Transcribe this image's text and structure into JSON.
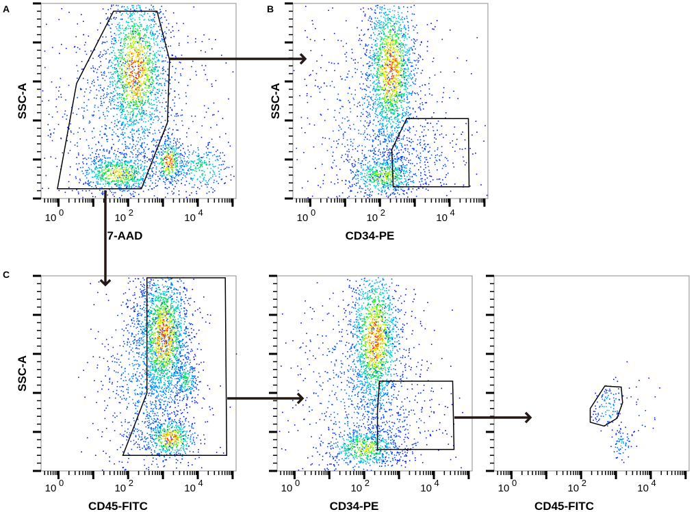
{
  "chart_data": {
    "type": "scatter",
    "subtype": "flow-cytometry density plots with gates",
    "panel_letters": [
      "A",
      "B",
      "C"
    ],
    "x_scale": "log10",
    "x_range_log10": [
      -0.5,
      5.1
    ],
    "y_range_fraction": [
      0,
      1
    ],
    "x_tick_labels": [
      {
        "base": "10",
        "exp": "0",
        "value": 0
      },
      {
        "base": "10",
        "exp": "2",
        "value": 2
      },
      {
        "base": "10",
        "exp": "4",
        "value": 4
      }
    ],
    "plots": [
      {
        "id": "A",
        "xlabel": "7-AAD",
        "ylabel": "SSC-A",
        "populations": [
          {
            "cx": 2.2,
            "cy": 0.66,
            "sx": 0.45,
            "sy": 0.2,
            "n": 1700,
            "peak": 1.0
          },
          {
            "cx": 1.7,
            "cy": 0.13,
            "sx": 0.55,
            "sy": 0.05,
            "n": 700,
            "peak": 0.85
          },
          {
            "cx": 3.15,
            "cy": 0.19,
            "sx": 0.2,
            "sy": 0.06,
            "n": 320,
            "peak": 1.0
          },
          {
            "cx": 4.05,
            "cy": 0.16,
            "sx": 0.4,
            "sy": 0.06,
            "n": 260,
            "peak": 0.55
          },
          {
            "cx": 2.0,
            "cy": 0.4,
            "sx": 1.3,
            "sy": 0.3,
            "n": 900,
            "peak": 0.2
          }
        ],
        "gate": [
          [
            1.58,
            0.96
          ],
          [
            2.83,
            0.96
          ],
          [
            3.19,
            0.71
          ],
          [
            3.13,
            0.39
          ],
          [
            2.38,
            0.05
          ],
          [
            -0.03,
            0.05
          ],
          [
            0.52,
            0.59
          ]
        ]
      },
      {
        "id": "B",
        "xlabel": "CD34-PE",
        "ylabel": "SSC-A",
        "populations": [
          {
            "cx": 2.3,
            "cy": 0.66,
            "sx": 0.35,
            "sy": 0.2,
            "n": 1700,
            "peak": 1.0
          },
          {
            "cx": 2.1,
            "cy": 0.12,
            "sx": 0.5,
            "sy": 0.05,
            "n": 600,
            "peak": 0.75
          },
          {
            "cx": 1.9,
            "cy": 0.4,
            "sx": 1.1,
            "sy": 0.28,
            "n": 800,
            "peak": 0.2
          },
          {
            "cx": 3.3,
            "cy": 0.2,
            "sx": 0.6,
            "sy": 0.1,
            "n": 150,
            "peak": 0.15
          }
        ],
        "gate": [
          [
            2.77,
            0.41
          ],
          [
            4.54,
            0.41
          ],
          [
            4.56,
            0.06
          ],
          [
            2.38,
            0.06
          ],
          [
            2.34,
            0.25
          ]
        ]
      },
      {
        "id": "C1",
        "xlabel": "CD45-FITC",
        "ylabel": "SSC-A",
        "populations": [
          {
            "cx": 3.0,
            "cy": 0.69,
            "sx": 0.35,
            "sy": 0.17,
            "n": 1700,
            "peak": 1.0
          },
          {
            "cx": 3.2,
            "cy": 0.17,
            "sx": 0.35,
            "sy": 0.05,
            "n": 500,
            "peak": 1.0
          },
          {
            "cx": 3.65,
            "cy": 0.47,
            "sx": 0.15,
            "sy": 0.06,
            "n": 200,
            "peak": 0.6
          },
          {
            "cx": 2.6,
            "cy": 0.5,
            "sx": 0.7,
            "sy": 0.3,
            "n": 1100,
            "peak": 0.25
          }
        ],
        "gate": [
          [
            2.54,
            0.99
          ],
          [
            4.79,
            0.99
          ],
          [
            4.83,
            0.08
          ],
          [
            1.85,
            0.08
          ],
          [
            2.54,
            0.4
          ]
        ]
      },
      {
        "id": "C2",
        "xlabel": "CD34-PE",
        "ylabel": "",
        "populations": [
          {
            "cx": 2.3,
            "cy": 0.68,
            "sx": 0.35,
            "sy": 0.19,
            "n": 1600,
            "peak": 1.0
          },
          {
            "cx": 2.0,
            "cy": 0.12,
            "sx": 0.5,
            "sy": 0.05,
            "n": 600,
            "peak": 0.8
          },
          {
            "cx": 1.9,
            "cy": 0.4,
            "sx": 1.0,
            "sy": 0.28,
            "n": 800,
            "peak": 0.2
          },
          {
            "cx": 3.2,
            "cy": 0.22,
            "sx": 0.6,
            "sy": 0.1,
            "n": 120,
            "peak": 0.15
          }
        ],
        "gate": [
          [
            2.44,
            0.46
          ],
          [
            4.54,
            0.46
          ],
          [
            4.58,
            0.11
          ],
          [
            2.38,
            0.11
          ],
          [
            2.38,
            0.31
          ]
        ]
      },
      {
        "id": "C3",
        "xlabel": "CD45-FITC",
        "ylabel": "",
        "populations": [
          {
            "cx": 2.75,
            "cy": 0.33,
            "sx": 0.2,
            "sy": 0.06,
            "n": 110,
            "peak": 0.3
          },
          {
            "cx": 3.15,
            "cy": 0.14,
            "sx": 0.15,
            "sy": 0.04,
            "n": 70,
            "peak": 0.3
          },
          {
            "cx": 3.7,
            "cy": 0.3,
            "sx": 0.4,
            "sy": 0.1,
            "n": 22,
            "peak": 0.1
          }
        ],
        "gate": [
          [
            2.68,
            0.435
          ],
          [
            3.15,
            0.43
          ],
          [
            3.19,
            0.35
          ],
          [
            3.03,
            0.27
          ],
          [
            2.66,
            0.23
          ],
          [
            2.26,
            0.25
          ],
          [
            2.26,
            0.32
          ]
        ]
      }
    ],
    "gating_flow": [
      "A -> B",
      "A -> C1",
      "C1 -> C2",
      "C2 -> C3"
    ]
  },
  "colors": {
    "low": "#0000ff",
    "mid1": "#00c8ff",
    "mid2": "#00e040",
    "mid3": "#ffff00",
    "high": "#ff0000",
    "gate": "#000000",
    "arrow": "#231815"
  }
}
